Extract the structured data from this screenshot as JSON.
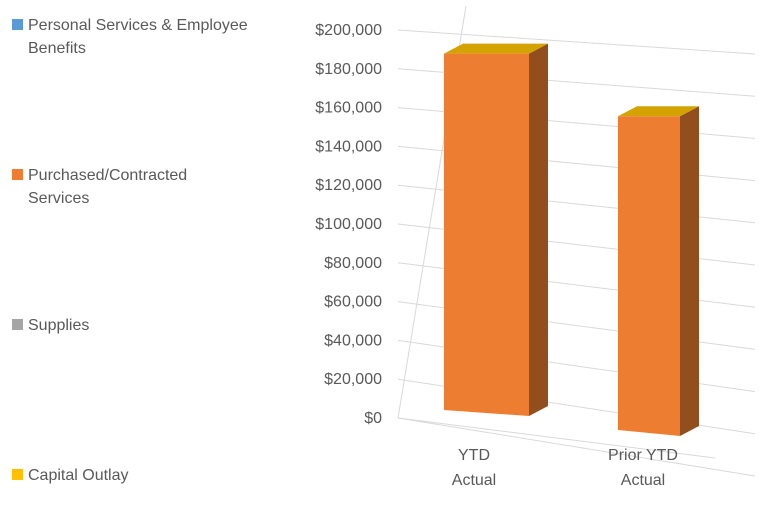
{
  "chart_data": {
    "type": "bar",
    "style": "3d-column",
    "categories": [
      "YTD Actual",
      "Prior YTD Actual"
    ],
    "category_lines": [
      [
        "YTD",
        "Actual"
      ],
      [
        "Prior YTD",
        "Actual"
      ]
    ],
    "series": [
      {
        "name": "Personal Services & Employee Benefits",
        "color": "#5B9BD5",
        "values": [
          0,
          0
        ]
      },
      {
        "name": "Purchased/Contracted Services",
        "color": "#ED7D31",
        "values": [
          193000,
          171000
        ]
      },
      {
        "name": "Supplies",
        "color": "#A5A5A5",
        "values": [
          0,
          0
        ]
      },
      {
        "name": "Capital Outlay",
        "color": "#FFC000",
        "values": [
          0,
          0
        ]
      }
    ],
    "y_ticks": [
      "$0",
      "$20,000",
      "$40,000",
      "$60,000",
      "$80,000",
      "$100,000",
      "$120,000",
      "$140,000",
      "$160,000",
      "$180,000",
      "$200,000"
    ],
    "ylim": [
      0,
      200000
    ],
    "grid": true,
    "legend_position": "left",
    "title": "",
    "xlabel": "",
    "ylabel": ""
  }
}
